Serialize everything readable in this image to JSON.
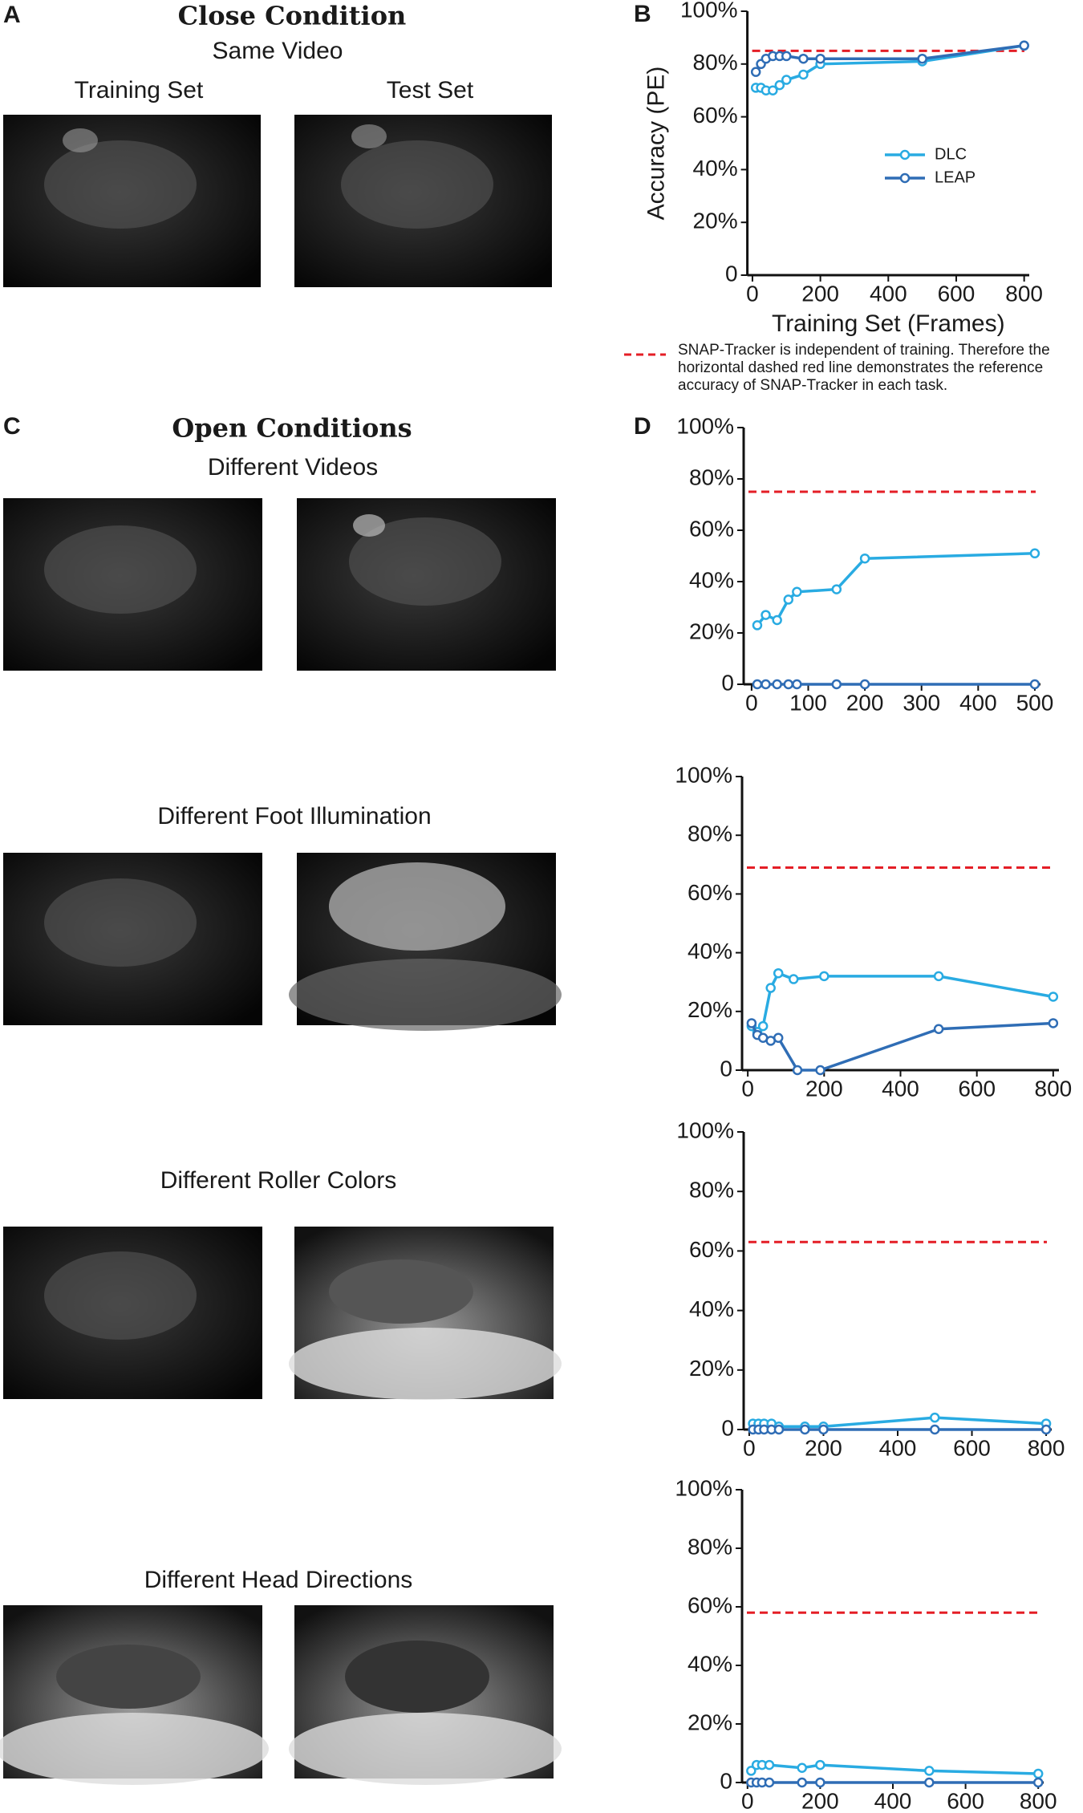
{
  "panels": {
    "A": {
      "label": "A",
      "title": "Close Condition",
      "subtitle": "Same Video",
      "training": "Training Set",
      "test": "Test Set"
    },
    "B": {
      "label": "B"
    },
    "C": {
      "label": "C",
      "title": "Open Conditions",
      "rows": [
        "Different Videos",
        "Different Foot Illumination",
        "Different Roller Colors",
        "Different Head Directions"
      ]
    },
    "D": {
      "label": "D"
    }
  },
  "chart_data": [
    {
      "type": "line",
      "ylabel": "Accuracy (PE)",
      "xlabel": "Training Set (Frames)",
      "note": "SNAP-Tracker is independent of training. Therefore the horizontal dashed red line demonstrates the reference accuracy of SNAP-Tracker in each task.",
      "legend": "lower right",
      "reference": 85,
      "reference_color": "#e41e26",
      "xlim": [
        -15,
        815
      ],
      "xticks": [
        0,
        200,
        400,
        600,
        800
      ],
      "ylim": [
        0,
        100
      ],
      "yticks": [
        0,
        {
          "value": 20,
          "label": "20%"
        },
        {
          "value": 40,
          "label": "40%"
        },
        {
          "value": 60,
          "label": "60%"
        },
        {
          "value": 80,
          "label": "80%"
        },
        {
          "value": 100,
          "label": "100%"
        }
      ],
      "series": [
        {
          "name": "DLC",
          "color": "#29abe2",
          "x": [
            10,
            25,
            40,
            60,
            80,
            100,
            150,
            200,
            500,
            800
          ],
          "values": [
            71,
            71,
            70,
            70,
            72,
            74,
            76,
            80,
            81,
            87
          ]
        },
        {
          "name": "LEAP",
          "color": "#2f6db5",
          "x": [
            10,
            25,
            40,
            60,
            80,
            100,
            150,
            200,
            500,
            800
          ],
          "values": [
            77,
            80,
            82,
            83,
            83,
            83,
            82,
            82,
            82,
            87
          ]
        }
      ]
    },
    {
      "type": "line",
      "reference": 75,
      "reference_color": "#e41e26",
      "xlim": [
        -14,
        510
      ],
      "xticks": [
        0,
        100,
        200,
        300,
        400,
        500
      ],
      "ylim": [
        0,
        100
      ],
      "yticks": [
        0,
        {
          "value": 20,
          "label": "20%"
        },
        {
          "value": 40,
          "label": "40%"
        },
        {
          "value": 60,
          "label": "60%"
        },
        {
          "value": 80,
          "label": "80%"
        },
        {
          "value": 100,
          "label": "100%"
        }
      ],
      "series": [
        {
          "name": "DLC",
          "color": "#29abe2",
          "x": [
            10,
            25,
            45,
            65,
            80,
            150,
            200,
            500
          ],
          "values": [
            23,
            27,
            25,
            33,
            36,
            37,
            49,
            51
          ]
        },
        {
          "name": "LEAP",
          "color": "#2f6db5",
          "x": [
            10,
            25,
            45,
            65,
            80,
            150,
            200,
            500
          ],
          "values": [
            0,
            0,
            0,
            0,
            0,
            0,
            0,
            0
          ]
        }
      ]
    },
    {
      "type": "line",
      "reference": 69,
      "reference_color": "#e41e26",
      "xlim": [
        -15,
        815
      ],
      "xticks": [
        0,
        200,
        400,
        600,
        800
      ],
      "ylim": [
        0,
        100
      ],
      "yticks": [
        0,
        {
          "value": 20,
          "label": "20%"
        },
        {
          "value": 40,
          "label": "40%"
        },
        {
          "value": 60,
          "label": "60%"
        },
        {
          "value": 80,
          "label": "80%"
        },
        {
          "value": 100,
          "label": "100%"
        }
      ],
      "series": [
        {
          "name": "DLC",
          "color": "#29abe2",
          "x": [
            10,
            25,
            40,
            60,
            80,
            120,
            200,
            500,
            800
          ],
          "values": [
            15,
            13,
            15,
            28,
            33,
            31,
            32,
            32,
            25
          ]
        },
        {
          "name": "LEAP",
          "color": "#2f6db5",
          "x": [
            10,
            25,
            40,
            60,
            80,
            130,
            190,
            500,
            800
          ],
          "values": [
            16,
            12,
            11,
            10,
            11,
            0,
            0,
            14,
            16
          ]
        }
      ]
    },
    {
      "type": "line",
      "reference": 63,
      "reference_color": "#e41e26",
      "xlim": [
        -15,
        815
      ],
      "xticks": [
        0,
        200,
        400,
        600,
        800
      ],
      "ylim": [
        0,
        100
      ],
      "yticks": [
        0,
        {
          "value": 20,
          "label": "20%"
        },
        {
          "value": 40,
          "label": "40%"
        },
        {
          "value": 60,
          "label": "60%"
        },
        {
          "value": 80,
          "label": "80%"
        },
        {
          "value": 100,
          "label": "100%"
        }
      ],
      "series": [
        {
          "name": "DLC",
          "color": "#29abe2",
          "x": [
            10,
            25,
            40,
            60,
            80,
            150,
            200,
            500,
            800
          ],
          "values": [
            2,
            2,
            2,
            2,
            1,
            1,
            1,
            4,
            2
          ]
        },
        {
          "name": "LEAP",
          "color": "#2f6db5",
          "x": [
            10,
            25,
            40,
            60,
            80,
            150,
            200,
            500,
            800
          ],
          "values": [
            0,
            0,
            0,
            0,
            0,
            0,
            0,
            0,
            0
          ]
        }
      ]
    },
    {
      "type": "line",
      "reference": 58,
      "reference_color": "#e41e26",
      "xlim": [
        -15,
        815
      ],
      "xticks": [
        0,
        200,
        400,
        600,
        800
      ],
      "ylim": [
        0,
        100
      ],
      "yticks": [
        0,
        {
          "value": 20,
          "label": "20%"
        },
        {
          "value": 40,
          "label": "40%"
        },
        {
          "value": 60,
          "label": "60%"
        },
        {
          "value": 80,
          "label": "80%"
        },
        {
          "value": 100,
          "label": "100%"
        }
      ],
      "series": [
        {
          "name": "DLC",
          "color": "#29abe2",
          "x": [
            10,
            25,
            40,
            60,
            150,
            200,
            500,
            800
          ],
          "values": [
            4,
            6,
            6,
            6,
            5,
            6,
            4,
            3
          ]
        },
        {
          "name": "LEAP",
          "color": "#2f6db5",
          "x": [
            10,
            25,
            40,
            60,
            150,
            200,
            500,
            800
          ],
          "values": [
            0,
            0,
            0,
            0,
            0,
            0,
            0,
            0
          ]
        }
      ]
    }
  ]
}
